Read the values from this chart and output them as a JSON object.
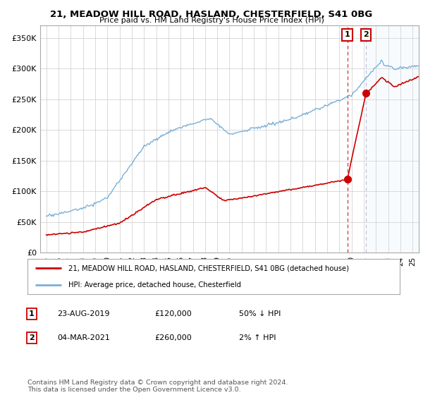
{
  "title": "21, MEADOW HILL ROAD, HASLAND, CHESTERFIELD, S41 0BG",
  "subtitle": "Price paid vs. HM Land Registry's House Price Index (HPI)",
  "ylabel_ticks": [
    "£0",
    "£50K",
    "£100K",
    "£150K",
    "£200K",
    "£250K",
    "£300K",
    "£350K"
  ],
  "ytick_values": [
    0,
    50000,
    100000,
    150000,
    200000,
    250000,
    300000,
    350000
  ],
  "ylim": [
    0,
    370000
  ],
  "xlim_start": 1994.5,
  "xlim_end": 2025.5,
  "hpi_color": "#7ab0d8",
  "price_color": "#cc0000",
  "vline_color": "#cc0000",
  "shade_color": "#d0e8f8",
  "point1_x": 2019.65,
  "point1_y": 120000,
  "point2_x": 2021.17,
  "point2_y": 260000,
  "legend_label1": "21, MEADOW HILL ROAD, HASLAND, CHESTERFIELD, S41 0BG (detached house)",
  "legend_label2": "HPI: Average price, detached house, Chesterfield",
  "table_row1": [
    "1",
    "23-AUG-2019",
    "£120,000",
    "50% ↓ HPI"
  ],
  "table_row2": [
    "2",
    "04-MAR-2021",
    "£260,000",
    "2% ↑ HPI"
  ],
  "footnote": "Contains HM Land Registry data © Crown copyright and database right 2024.\nThis data is licensed under the Open Government Licence v3.0.",
  "bg_color": "#ffffff",
  "grid_color": "#cccccc",
  "annotation_box_color": "#cc0000"
}
